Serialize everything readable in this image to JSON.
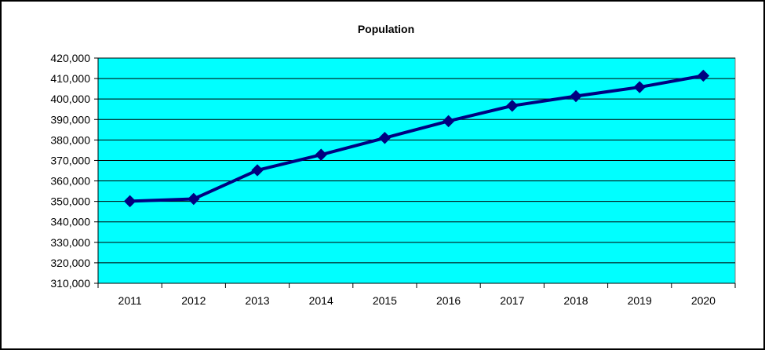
{
  "chart_data": {
    "type": "line",
    "title": "Population",
    "xlabel": "",
    "ylabel": "",
    "categories": [
      "2011",
      "2012",
      "2013",
      "2014",
      "2015",
      "2016",
      "2017",
      "2018",
      "2019",
      "2020"
    ],
    "series": [
      {
        "values": [
          350100,
          351200,
          365200,
          372800,
          381000,
          389200,
          396700,
          401400,
          405800,
          411400
        ]
      }
    ],
    "ylim": [
      310000,
      420000
    ],
    "ytick_labels": [
      "420,000",
      "410,000",
      "400,000",
      "390,000",
      "380,000",
      "370,000",
      "360,000",
      "350,000",
      "340,000",
      "330,000",
      "320,000",
      "310,000"
    ],
    "grid": "horizontal",
    "legend": "none"
  },
  "colors": {
    "plot_background": "#00FFFF",
    "line": "#000080",
    "grid": "#000000",
    "frame": "#000000"
  }
}
